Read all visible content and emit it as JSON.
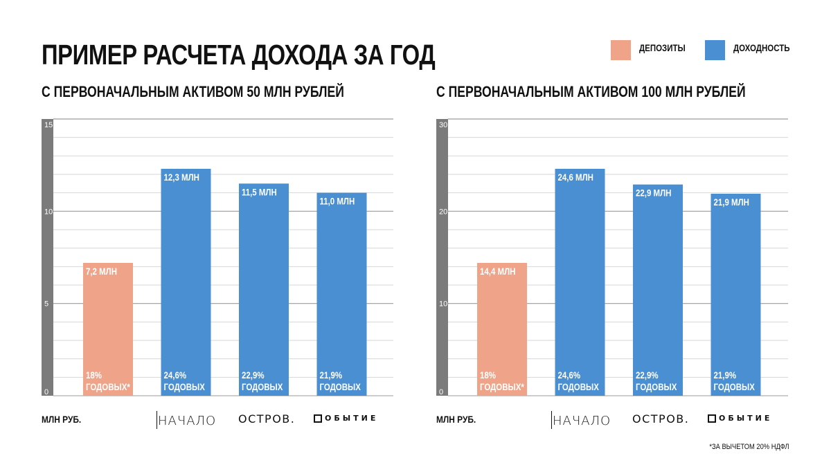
{
  "title": "ПРИМЕР РАСЧЕТА ДОХОДА ЗА ГОД",
  "legend": [
    {
      "label": "ДЕПОЗИТЫ",
      "color": "#EFA48A"
    },
    {
      "label": "ДОХОДНОСТЬ",
      "color": "#4A8FD2"
    }
  ],
  "unit_label": "МЛН РУБ.",
  "footnote": "*ЗА ВЫЧЕТОМ 20% НДФЛ",
  "logos": [
    {
      "name": "nachalo-logo",
      "text": "НАЧАЛО"
    },
    {
      "name": "ostrov-logo",
      "text": "ОСТРОВ."
    },
    {
      "name": "sobytie-logo",
      "text": "ОБЫТИЕ"
    }
  ],
  "chart_data": [
    {
      "type": "bar",
      "title": "С ПЕРВОНАЧАЛЬНЫМ АКТИВОМ 50 МЛН РУБЛЕЙ",
      "ylim": [
        0,
        15
      ],
      "yticks": [
        0,
        5,
        10,
        15
      ],
      "grid": true,
      "bars": [
        {
          "value": 7.2,
          "label": "7,2 МЛН",
          "rate_line1": "18%",
          "rate_line2": "ГОДОВЫХ*",
          "kind": "deposit"
        },
        {
          "value": 12.3,
          "label": "12,3 МЛН",
          "rate_line1": "24,6%",
          "rate_line2": "ГОДОВЫХ",
          "kind": "yield"
        },
        {
          "value": 11.5,
          "label": "11,5 МЛН",
          "rate_line1": "22,9%",
          "rate_line2": "ГОДОВЫХ",
          "kind": "yield"
        },
        {
          "value": 11.0,
          "label": "11,0 МЛН",
          "rate_line1": "21,9%",
          "rate_line2": "ГОДОВЫХ",
          "kind": "yield"
        }
      ]
    },
    {
      "type": "bar",
      "title": "С ПЕРВОНАЧАЛЬНЫМ АКТИВОМ 100 МЛН РУБЛЕЙ",
      "ylim": [
        0,
        30
      ],
      "yticks": [
        0,
        10,
        20,
        30
      ],
      "grid": true,
      "bars": [
        {
          "value": 14.4,
          "label": "14,4 МЛН",
          "rate_line1": "18%",
          "rate_line2": "ГОДОВЫХ*",
          "kind": "deposit"
        },
        {
          "value": 24.6,
          "label": "24,6 МЛН",
          "rate_line1": "24,6%",
          "rate_line2": "ГОДОВЫХ",
          "kind": "yield"
        },
        {
          "value": 22.9,
          "label": "22,9 МЛН",
          "rate_line1": "22,9%",
          "rate_line2": "ГОДОВЫХ",
          "kind": "yield"
        },
        {
          "value": 21.9,
          "label": "21,9 МЛН",
          "rate_line1": "21,9%",
          "rate_line2": "ГОДОВЫХ",
          "kind": "yield"
        }
      ]
    }
  ]
}
